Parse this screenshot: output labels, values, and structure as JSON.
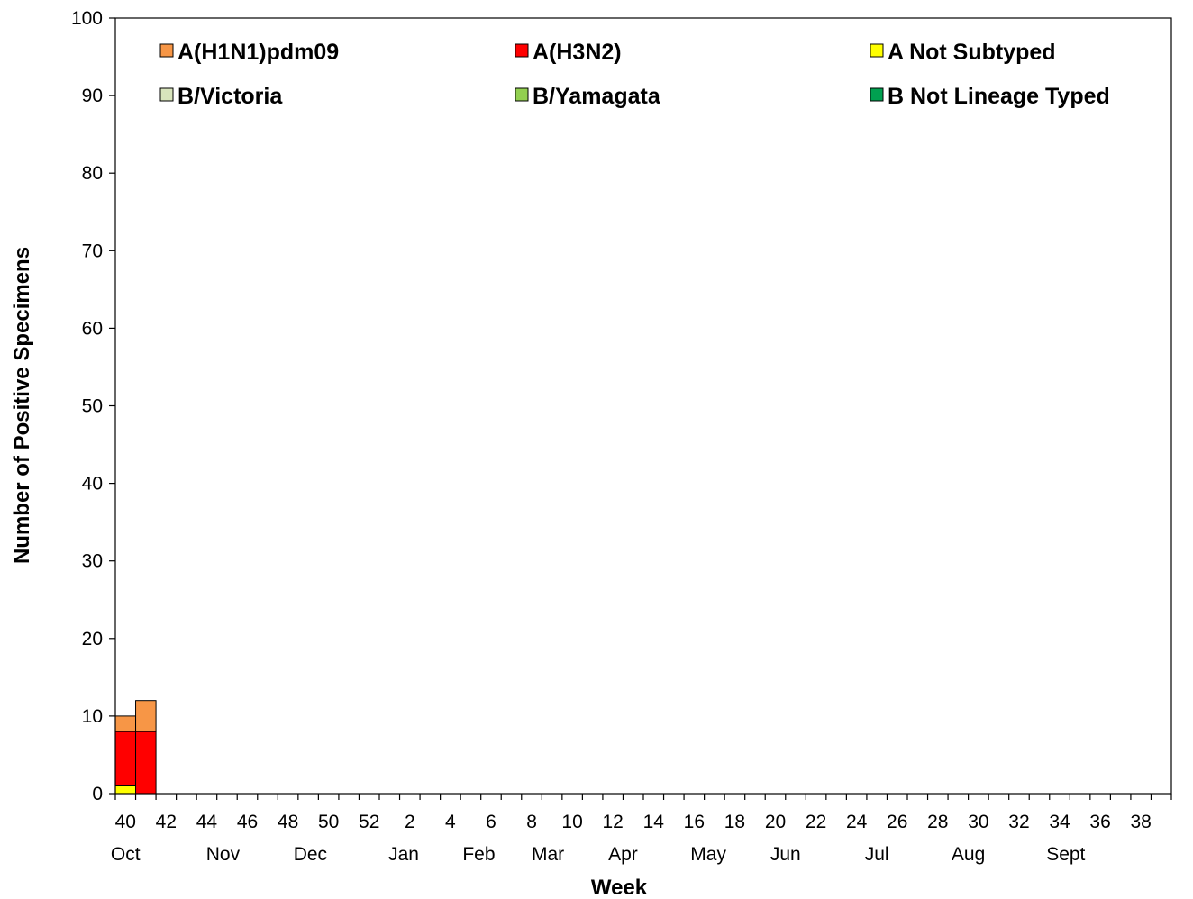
{
  "chart_data": {
    "type": "bar",
    "stacked": true,
    "xlabel": "Week",
    "ylabel": "Number of Positive Specimens",
    "ylim": [
      0,
      100
    ],
    "yticks": [
      0,
      10,
      20,
      30,
      40,
      50,
      60,
      70,
      80,
      90,
      100
    ],
    "x": [
      40,
      41,
      42,
      43,
      44,
      45,
      46,
      47,
      48,
      49,
      50,
      51,
      52,
      1,
      2,
      3,
      4,
      5,
      6,
      7,
      8,
      9,
      10,
      11,
      12,
      13,
      14,
      15,
      16,
      17,
      18,
      19,
      20,
      21,
      22,
      23,
      24,
      25,
      26,
      27,
      28,
      29,
      30,
      31,
      32,
      33,
      34,
      35,
      36,
      37,
      38,
      39
    ],
    "xtick_labels": [
      "40",
      "42",
      "44",
      "46",
      "48",
      "50",
      "52",
      "2",
      "4",
      "6",
      "8",
      "10",
      "12",
      "14",
      "16",
      "18",
      "20",
      "22",
      "24",
      "26",
      "28",
      "30",
      "32",
      "34",
      "36",
      "38"
    ],
    "month_labels": [
      "Oct",
      "Nov",
      "Dec",
      "Jan",
      "Feb",
      "Mar",
      "Apr",
      "May",
      "Jun",
      "Jul",
      "Aug",
      "Sept"
    ],
    "legend_position": "top",
    "series": [
      {
        "name": "A Not Subtyped",
        "color": "#ffff00",
        "values": [
          1,
          0,
          0,
          0,
          0,
          0,
          0,
          0,
          0,
          0,
          0,
          0,
          0,
          0,
          0,
          0,
          0,
          0,
          0,
          0,
          0,
          0,
          0,
          0,
          0,
          0,
          0,
          0,
          0,
          0,
          0,
          0,
          0,
          0,
          0,
          0,
          0,
          0,
          0,
          0,
          0,
          0,
          0,
          0,
          0,
          0,
          0,
          0,
          0,
          0,
          0,
          0
        ]
      },
      {
        "name": "A(H3N2)",
        "color": "#ff0000",
        "values": [
          7,
          8,
          0,
          0,
          0,
          0,
          0,
          0,
          0,
          0,
          0,
          0,
          0,
          0,
          0,
          0,
          0,
          0,
          0,
          0,
          0,
          0,
          0,
          0,
          0,
          0,
          0,
          0,
          0,
          0,
          0,
          0,
          0,
          0,
          0,
          0,
          0,
          0,
          0,
          0,
          0,
          0,
          0,
          0,
          0,
          0,
          0,
          0,
          0,
          0,
          0,
          0
        ]
      },
      {
        "name": "A(H1N1)pdm09",
        "color": "#f79646",
        "values": [
          2,
          4,
          0,
          0,
          0,
          0,
          0,
          0,
          0,
          0,
          0,
          0,
          0,
          0,
          0,
          0,
          0,
          0,
          0,
          0,
          0,
          0,
          0,
          0,
          0,
          0,
          0,
          0,
          0,
          0,
          0,
          0,
          0,
          0,
          0,
          0,
          0,
          0,
          0,
          0,
          0,
          0,
          0,
          0,
          0,
          0,
          0,
          0,
          0,
          0,
          0,
          0
        ]
      },
      {
        "name": "B/Victoria",
        "color": "#d8e4bc",
        "values": [
          0,
          0,
          0,
          0,
          0,
          0,
          0,
          0,
          0,
          0,
          0,
          0,
          0,
          0,
          0,
          0,
          0,
          0,
          0,
          0,
          0,
          0,
          0,
          0,
          0,
          0,
          0,
          0,
          0,
          0,
          0,
          0,
          0,
          0,
          0,
          0,
          0,
          0,
          0,
          0,
          0,
          0,
          0,
          0,
          0,
          0,
          0,
          0,
          0,
          0,
          0,
          0
        ]
      },
      {
        "name": "B/Yamagata",
        "color": "#92d050",
        "values": [
          0,
          0,
          0,
          0,
          0,
          0,
          0,
          0,
          0,
          0,
          0,
          0,
          0,
          0,
          0,
          0,
          0,
          0,
          0,
          0,
          0,
          0,
          0,
          0,
          0,
          0,
          0,
          0,
          0,
          0,
          0,
          0,
          0,
          0,
          0,
          0,
          0,
          0,
          0,
          0,
          0,
          0,
          0,
          0,
          0,
          0,
          0,
          0,
          0,
          0,
          0,
          0
        ]
      },
      {
        "name": "B Not Lineage Typed",
        "color": "#00a050",
        "values": [
          0,
          0,
          0,
          0,
          0,
          0,
          0,
          0,
          0,
          0,
          0,
          0,
          0,
          0,
          0,
          0,
          0,
          0,
          0,
          0,
          0,
          0,
          0,
          0,
          0,
          0,
          0,
          0,
          0,
          0,
          0,
          0,
          0,
          0,
          0,
          0,
          0,
          0,
          0,
          0,
          0,
          0,
          0,
          0,
          0,
          0,
          0,
          0,
          0,
          0,
          0,
          0
        ]
      }
    ],
    "legend_order": [
      "A(H1N1)pdm09",
      "A(H3N2)",
      "A Not Subtyped",
      "B/Victoria",
      "B/Yamagata",
      "B Not Lineage Typed"
    ]
  }
}
